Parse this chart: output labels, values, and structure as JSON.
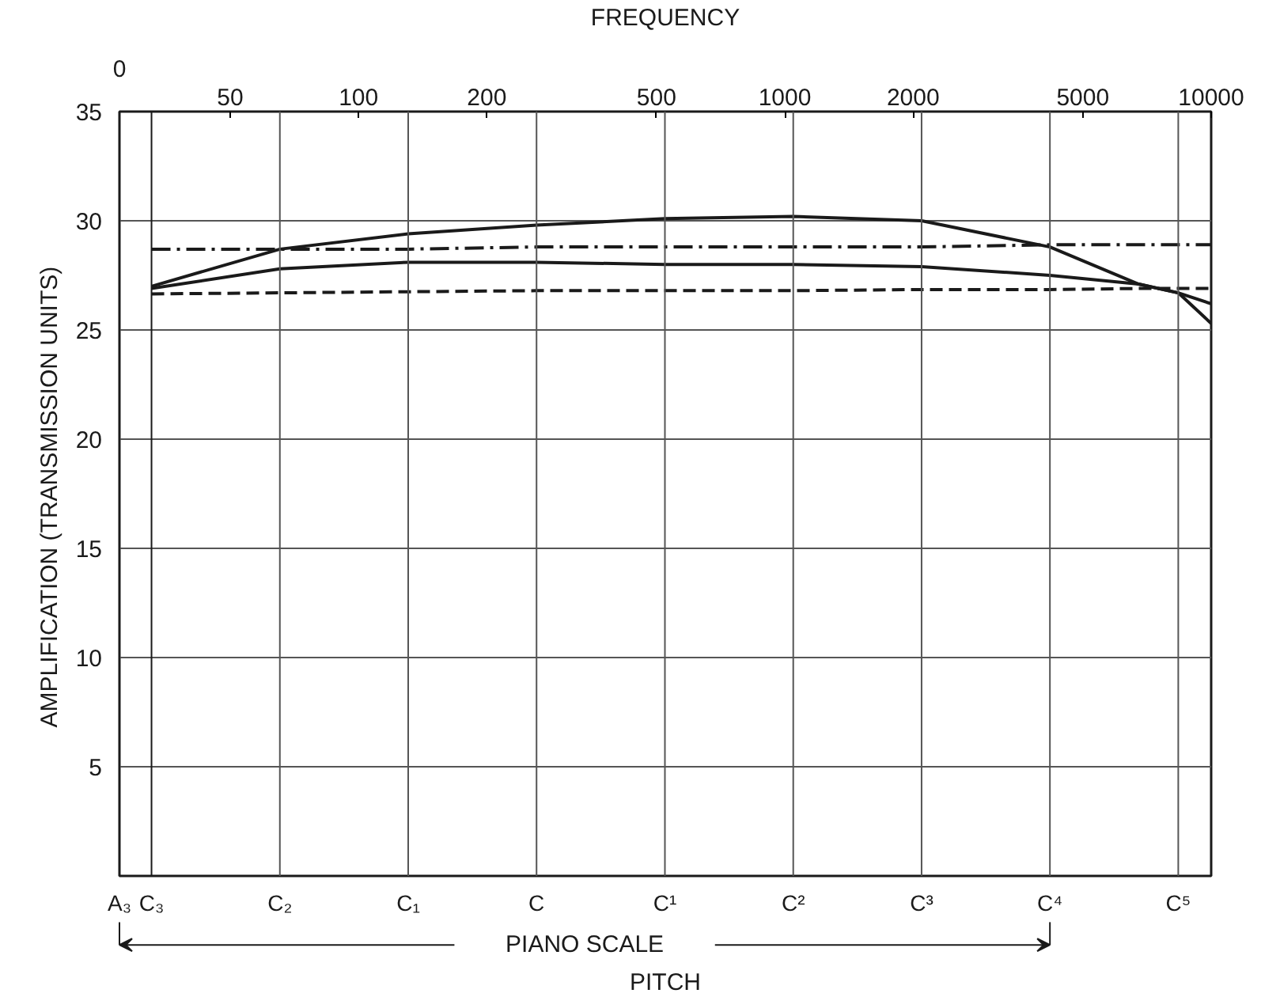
{
  "chart_data": {
    "type": "line",
    "xlabel": "FREQUENCY",
    "ylabel": "AMPLIFICATION  (TRANSMISSION UNITS)",
    "log": "x",
    "grid": "y",
    "marker": "none",
    "x": [
      32.7,
      65.4,
      130.8,
      261.6,
      523.3,
      1046.5,
      2093,
      4186,
      6760,
      8372,
      10000
    ],
    "xlim": [
      27.5,
      10000
    ],
    "xticks": [
      50,
      100,
      200,
      500,
      1000,
      2000,
      5000,
      10000
    ],
    "ylim": [
      0,
      35
    ],
    "yticks": [
      5,
      10,
      15,
      20,
      25,
      30,
      35
    ],
    "series": [
      {
        "color": "#1a1a1a",
        "line_style": "solid",
        "values": [
          27.0,
          28.7,
          29.4,
          29.8,
          30.1,
          30.2,
          30.0,
          28.8,
          27.1,
          26.7,
          25.3
        ]
      },
      {
        "color": "#1a1a1a",
        "line_style": "solid",
        "values": [
          26.9,
          27.8,
          28.1,
          28.1,
          28.0,
          28.0,
          27.9,
          27.5,
          27.1,
          26.7,
          26.2
        ]
      },
      {
        "color": "#1a1a1a",
        "line_style": "dashdot",
        "values": [
          28.7,
          28.7,
          28.7,
          28.8,
          28.8,
          28.8,
          28.8,
          28.9,
          28.9,
          28.9,
          28.9
        ]
      },
      {
        "color": "#1a1a1a",
        "line_style": "dashed",
        "values": [
          26.65,
          26.7,
          26.75,
          26.8,
          26.8,
          26.8,
          26.85,
          26.85,
          26.9,
          26.9,
          26.9
        ]
      }
    ],
    "ref_lines": [
      {
        "axis": "x",
        "value": 27.5,
        "label": "A₃",
        "color": "#1a1a1a"
      },
      {
        "axis": "x",
        "value": 32.7,
        "label": "C₃",
        "color": "#1a1a1a"
      },
      {
        "axis": "x",
        "value": 65.4,
        "label": "C₂",
        "color": "#555555"
      },
      {
        "axis": "x",
        "value": 130.8,
        "label": "C₁",
        "color": "#555555"
      },
      {
        "axis": "x",
        "value": 261.6,
        "label": "C",
        "color": "#555555"
      },
      {
        "axis": "x",
        "value": 523.3,
        "label": "C¹",
        "color": "#555555"
      },
      {
        "axis": "x",
        "value": 1046.5,
        "label": "C²",
        "color": "#555555"
      },
      {
        "axis": "x",
        "value": 2093,
        "label": "C³",
        "color": "#555555"
      },
      {
        "axis": "x",
        "value": 4186,
        "label": "C⁴",
        "color": "#555555"
      },
      {
        "axis": "x",
        "value": 8372,
        "label": "C⁵",
        "color": "#555555"
      }
    ],
    "annotations": [
      "0",
      "PITCH",
      "PIANO SCALE"
    ]
  }
}
